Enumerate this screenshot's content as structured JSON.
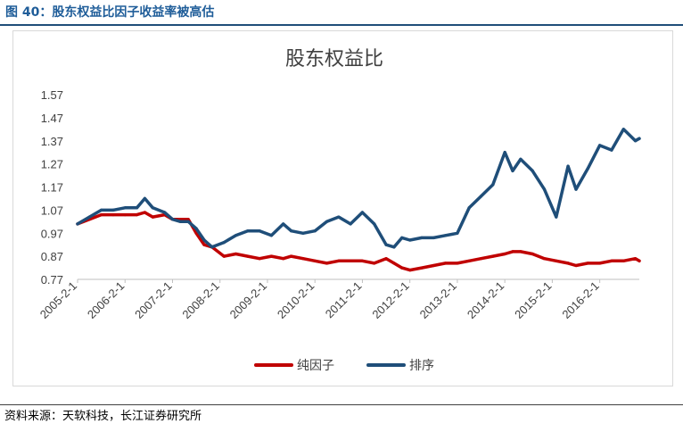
{
  "figure": {
    "caption": "图 40：股东权益比因子收益率被高估",
    "source": "资料来源：天软科技，长江证券研究所"
  },
  "chart_data": {
    "type": "line",
    "title": "股东权益比",
    "xlabel": "",
    "ylabel": "",
    "ylim": [
      0.77,
      1.57
    ],
    "yticks": [
      "1.57",
      "1.47",
      "1.37",
      "1.27",
      "1.17",
      "1.07",
      "0.97",
      "0.87",
      "0.77"
    ],
    "xticks": [
      "2005-2-1",
      "2006-2-1",
      "2007-2-1",
      "2008-2-1",
      "2009-2-1",
      "2010-2-1",
      "2011-2-1",
      "2012-2-1",
      "2013-2-1",
      "2014-2-1",
      "2015-2-1",
      "2016-2-1"
    ],
    "xrange": [
      "2005-02",
      "2016-12"
    ],
    "grid": false,
    "legend_position": "bottom",
    "series": [
      {
        "name": "纯因子",
        "color": "#c00000",
        "x": [
          "2005-02",
          "2005-05",
          "2005-08",
          "2005-11",
          "2006-02",
          "2006-05",
          "2006-07",
          "2006-09",
          "2006-12",
          "2007-02",
          "2007-04",
          "2007-06",
          "2007-08",
          "2007-10",
          "2007-12",
          "2008-03",
          "2008-06",
          "2008-09",
          "2008-12",
          "2009-03",
          "2009-06",
          "2009-08",
          "2009-11",
          "2010-02",
          "2010-05",
          "2010-08",
          "2010-11",
          "2011-02",
          "2011-05",
          "2011-08",
          "2011-10",
          "2011-12",
          "2012-02",
          "2012-05",
          "2012-08",
          "2012-11",
          "2013-02",
          "2013-05",
          "2013-08",
          "2013-11",
          "2014-02",
          "2014-04",
          "2014-06",
          "2014-09",
          "2014-12",
          "2015-03",
          "2015-06",
          "2015-08",
          "2015-11",
          "2016-02",
          "2016-05",
          "2016-08",
          "2016-11",
          "2016-12"
        ],
        "values": [
          1.01,
          1.03,
          1.05,
          1.05,
          1.05,
          1.05,
          1.06,
          1.04,
          1.05,
          1.03,
          1.03,
          1.03,
          0.97,
          0.92,
          0.91,
          0.87,
          0.88,
          0.87,
          0.86,
          0.87,
          0.86,
          0.87,
          0.86,
          0.85,
          0.84,
          0.85,
          0.85,
          0.85,
          0.84,
          0.86,
          0.84,
          0.82,
          0.81,
          0.82,
          0.83,
          0.84,
          0.84,
          0.85,
          0.86,
          0.87,
          0.88,
          0.89,
          0.89,
          0.88,
          0.86,
          0.85,
          0.84,
          0.83,
          0.84,
          0.84,
          0.85,
          0.85,
          0.86,
          0.85
        ]
      },
      {
        "name": "排序",
        "color": "#1f4e79",
        "x": [
          "2005-02",
          "2005-05",
          "2005-08",
          "2005-11",
          "2006-02",
          "2006-05",
          "2006-07",
          "2006-09",
          "2006-12",
          "2007-02",
          "2007-04",
          "2007-06",
          "2007-08",
          "2007-10",
          "2007-12",
          "2008-03",
          "2008-06",
          "2008-09",
          "2008-12",
          "2009-03",
          "2009-06",
          "2009-08",
          "2009-11",
          "2010-02",
          "2010-05",
          "2010-08",
          "2010-11",
          "2011-02",
          "2011-05",
          "2011-08",
          "2011-10",
          "2011-12",
          "2012-02",
          "2012-05",
          "2012-08",
          "2012-11",
          "2013-02",
          "2013-05",
          "2013-08",
          "2013-11",
          "2014-02",
          "2014-04",
          "2014-06",
          "2014-09",
          "2014-12",
          "2015-03",
          "2015-06",
          "2015-08",
          "2015-11",
          "2016-02",
          "2016-05",
          "2016-08",
          "2016-11",
          "2016-12"
        ],
        "values": [
          1.01,
          1.04,
          1.07,
          1.07,
          1.08,
          1.08,
          1.12,
          1.08,
          1.06,
          1.03,
          1.02,
          1.02,
          0.99,
          0.94,
          0.91,
          0.93,
          0.96,
          0.98,
          0.98,
          0.96,
          1.01,
          0.98,
          0.97,
          0.98,
          1.02,
          1.04,
          1.01,
          1.06,
          1.01,
          0.92,
          0.91,
          0.95,
          0.94,
          0.95,
          0.95,
          0.96,
          0.97,
          1.08,
          1.13,
          1.18,
          1.32,
          1.24,
          1.29,
          1.24,
          1.16,
          1.04,
          1.26,
          1.16,
          1.25,
          1.35,
          1.33,
          1.42,
          1.37,
          1.38
        ]
      }
    ]
  }
}
